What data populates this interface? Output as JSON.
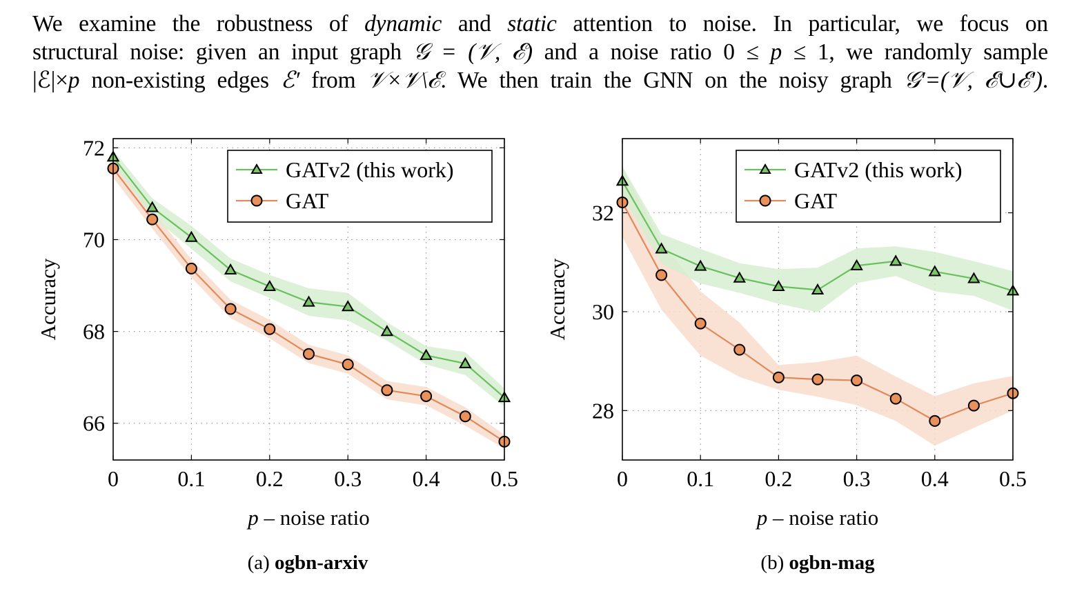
{
  "paragraph": {
    "lines": [
      [
        {
          "t": "We examine the robustness of ",
          "s": "n"
        },
        {
          "t": "dynamic",
          "s": "i"
        },
        {
          "t": " and ",
          "s": "n"
        },
        {
          "t": "static",
          "s": "i"
        },
        {
          "t": " attention to noise.  In particular, we focus on",
          "s": "n"
        }
      ],
      [
        {
          "t": "structural noise: given an input graph ",
          "s": "n"
        },
        {
          "t": "𝒢 = (𝒱, ℰ)",
          "s": "m"
        },
        {
          "t": " and a noise ratio 0 ≤ ",
          "s": "n"
        },
        {
          "t": "p",
          "s": "m"
        },
        {
          "t": " ≤ 1, we randomly sample",
          "s": "n"
        }
      ],
      [
        {
          "t": "|ℰ|×",
          "s": "n"
        },
        {
          "t": "p",
          "s": "m"
        },
        {
          "t": " non-existing edges ",
          "s": "n"
        },
        {
          "t": "ℰ′",
          "s": "m"
        },
        {
          "t": " from ",
          "s": "n"
        },
        {
          "t": "𝒱×𝒱\\ℰ",
          "s": "m"
        },
        {
          "t": ". We then train the GNN on the noisy graph ",
          "s": "n"
        },
        {
          "t": "𝒢′=(𝒱, ℰ∪ℰ′)",
          "s": "m"
        },
        {
          "t": ".",
          "s": "n"
        }
      ]
    ]
  },
  "colors": {
    "gatv2_line": "#6abf5e",
    "gatv2_marker": "#7cc46a",
    "gatv2_band": "#d6efd0",
    "gat_line": "#e08a5c",
    "gat_marker": "#e8915d",
    "gat_band": "#f8dccb",
    "grid": "#9a9a9a"
  },
  "chart_data": [
    {
      "type": "line",
      "caption_prefix": "(a) ",
      "caption_name": "ogbn-arxiv",
      "xlabel_var": "p",
      "xlabel_rest": " – noise ratio",
      "ylabel": "Accuracy",
      "xlim": [
        0,
        0.5
      ],
      "ylim": [
        65.2,
        72.2
      ],
      "xticks": [
        0,
        0.1,
        0.2,
        0.3,
        0.4,
        0.5
      ],
      "xtick_labels": [
        "0",
        "0.1",
        "0.2",
        "0.3",
        "0.4",
        "0.5"
      ],
      "yticks": [
        66,
        68,
        70,
        72
      ],
      "ytick_labels": [
        "66",
        "68",
        "70",
        "72"
      ],
      "grid": true,
      "legend_position": "top-right",
      "x": [
        0,
        0.05,
        0.1,
        0.15,
        0.2,
        0.25,
        0.3,
        0.35,
        0.4,
        0.45,
        0.5
      ],
      "series": [
        {
          "name": "GATv2 (this work)",
          "marker": "triangle",
          "values": [
            71.8,
            70.7,
            70.05,
            69.34,
            68.98,
            68.64,
            68.54,
            68.0,
            67.48,
            67.3,
            66.56
          ],
          "std": [
            0.15,
            0.2,
            0.25,
            0.25,
            0.25,
            0.3,
            0.3,
            0.2,
            0.2,
            0.25,
            0.2
          ]
        },
        {
          "name": "GAT",
          "marker": "circle",
          "values": [
            71.55,
            70.44,
            69.37,
            68.49,
            68.05,
            67.51,
            67.28,
            66.72,
            66.59,
            66.15,
            65.6
          ],
          "std": [
            0.2,
            0.2,
            0.2,
            0.2,
            0.2,
            0.2,
            0.2,
            0.2,
            0.2,
            0.2,
            0.15
          ]
        }
      ]
    },
    {
      "type": "line",
      "caption_prefix": "(b) ",
      "caption_name": "ogbn-mag",
      "xlabel_var": "p",
      "xlabel_rest": " – noise ratio",
      "ylabel": "Accuracy",
      "xlim": [
        0,
        0.5
      ],
      "ylim": [
        27.0,
        33.5
      ],
      "xticks": [
        0,
        0.1,
        0.2,
        0.3,
        0.4,
        0.5
      ],
      "xtick_labels": [
        "0",
        "0.1",
        "0.2",
        "0.3",
        "0.4",
        "0.5"
      ],
      "yticks": [
        28,
        30,
        32
      ],
      "ytick_labels": [
        "28",
        "30",
        "32"
      ],
      "grid": true,
      "legend_position": "top-right",
      "x": [
        0,
        0.05,
        0.1,
        0.15,
        0.2,
        0.25,
        0.3,
        0.35,
        0.4,
        0.45,
        0.5
      ],
      "series": [
        {
          "name": "GATv2 (this work)",
          "marker": "triangle",
          "values": [
            32.64,
            31.27,
            30.92,
            30.68,
            30.51,
            30.44,
            30.93,
            31.02,
            30.81,
            30.67,
            30.42
          ],
          "std": [
            0.3,
            0.3,
            0.35,
            0.3,
            0.35,
            0.45,
            0.35,
            0.3,
            0.4,
            0.35,
            0.4
          ]
        },
        {
          "name": "GAT",
          "marker": "circle",
          "values": [
            32.21,
            30.74,
            29.76,
            29.23,
            28.67,
            28.63,
            28.61,
            28.24,
            27.79,
            28.1,
            28.35
          ],
          "std": [
            0.7,
            0.7,
            0.65,
            0.55,
            0.25,
            0.35,
            0.5,
            0.45,
            0.5,
            0.45,
            0.35
          ]
        }
      ]
    }
  ]
}
